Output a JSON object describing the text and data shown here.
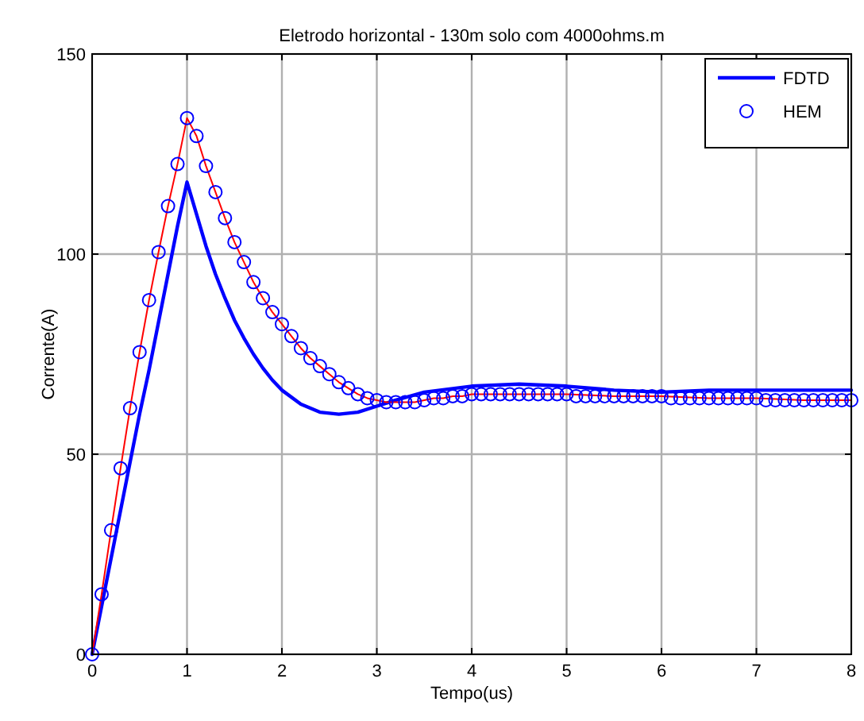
{
  "chart_data": {
    "type": "line",
    "title": "Eletrodo horizontal - 130m solo com 4000ohms.m",
    "xlabel": "Tempo(us)",
    "ylabel": "Corrente(A)",
    "xlim": [
      0,
      8
    ],
    "ylim": [
      0,
      150
    ],
    "xticks": [
      0,
      1,
      2,
      3,
      4,
      5,
      6,
      7,
      8
    ],
    "yticks": [
      0,
      50,
      100,
      150
    ],
    "grid": true,
    "legend": "top right",
    "series": [
      {
        "name": "FDTD",
        "color": "#0000ff",
        "x": [
          0,
          0.1,
          0.2,
          0.3,
          0.4,
          0.5,
          0.6,
          0.7,
          0.8,
          0.9,
          1.0,
          1.1,
          1.2,
          1.3,
          1.4,
          1.5,
          1.6,
          1.7,
          1.8,
          1.9,
          2.0,
          2.2,
          2.4,
          2.6,
          2.8,
          3.0,
          3.2,
          3.5,
          4.0,
          4.5,
          5.0,
          5.5,
          6.0,
          6.5,
          7.0,
          7.5,
          8.0
        ],
        "values": [
          0,
          12,
          24,
          36,
          48,
          60,
          71,
          83,
          95,
          107,
          118,
          110,
          102,
          95,
          89,
          83.5,
          79,
          75,
          71.5,
          68.5,
          66,
          62.5,
          60.5,
          60,
          60.5,
          62,
          63.5,
          65.5,
          67,
          67.5,
          67,
          66,
          65.5,
          66,
          66,
          66,
          66
        ]
      },
      {
        "color": "#ff0000",
        "x": [
          0,
          0.1,
          0.2,
          0.3,
          0.4,
          0.5,
          0.6,
          0.7,
          0.8,
          0.9,
          1.0,
          1.1,
          1.2,
          1.3,
          1.4,
          1.5,
          1.6,
          1.7,
          1.8,
          1.9,
          2.0,
          2.1,
          2.2,
          2.3,
          2.4,
          2.5,
          2.6,
          2.7,
          2.8,
          2.9,
          3.0,
          3.1,
          3.2,
          3.3,
          3.4,
          3.5,
          3.6,
          3.7,
          3.8,
          3.9,
          4.0,
          4.5,
          5.0,
          5.5,
          6.0,
          6.5,
          7.0,
          7.5,
          8.0
        ],
        "values": [
          0,
          15,
          31,
          46.5,
          61.5,
          75.5,
          88.5,
          100.5,
          112,
          122.5,
          134,
          129.5,
          122,
          115.5,
          109,
          103,
          98,
          93,
          89,
          85.5,
          82.5,
          79.5,
          76.5,
          74,
          72,
          70,
          68,
          66.5,
          65,
          64,
          63.5,
          63,
          63,
          63,
          63,
          63.5,
          64,
          64,
          64.5,
          64.5,
          65,
          65,
          65,
          64.5,
          64.5,
          64,
          64,
          63.5,
          63.5
        ]
      },
      {
        "name": "HEM",
        "type": "scatter",
        "marker": "circle",
        "color": "#0000ff",
        "x": [
          0,
          0.1,
          0.2,
          0.3,
          0.4,
          0.5,
          0.6,
          0.7,
          0.8,
          0.9,
          1.0,
          1.1,
          1.2,
          1.3,
          1.4,
          1.5,
          1.6,
          1.7,
          1.8,
          1.9,
          2.0,
          2.1,
          2.2,
          2.3,
          2.4,
          2.5,
          2.6,
          2.7,
          2.8,
          2.9,
          3.0,
          3.1,
          3.2,
          3.3,
          3.4,
          3.5,
          3.6,
          3.7,
          3.8,
          3.9,
          4.0,
          4.1,
          4.2,
          4.3,
          4.4,
          4.5,
          4.6,
          4.7,
          4.8,
          4.9,
          5.0,
          5.1,
          5.2,
          5.3,
          5.4,
          5.5,
          5.6,
          5.7,
          5.8,
          5.9,
          6.0,
          6.1,
          6.2,
          6.3,
          6.4,
          6.5,
          6.6,
          6.7,
          6.8,
          6.9,
          7.0,
          7.1,
          7.2,
          7.3,
          7.4,
          7.5,
          7.6,
          7.7,
          7.8,
          7.9,
          8.0
        ],
        "values": [
          0,
          15,
          31,
          46.5,
          61.5,
          75.5,
          88.5,
          100.5,
          112,
          122.5,
          134,
          129.5,
          122,
          115.5,
          109,
          103,
          98,
          93,
          89,
          85.5,
          82.5,
          79.5,
          76.5,
          74,
          72,
          70,
          68,
          66.5,
          65,
          64,
          63.5,
          63,
          63,
          63,
          63,
          63.5,
          64,
          64,
          64.5,
          64.5,
          65,
          65,
          65,
          65,
          65,
          65,
          65,
          65,
          65,
          65,
          65,
          64.5,
          64.5,
          64.5,
          64.5,
          64.5,
          64.5,
          64.5,
          64.5,
          64.5,
          64.5,
          64,
          64,
          64,
          64,
          64,
          64,
          64,
          64,
          64,
          64,
          63.5,
          63.5,
          63.5,
          63.5,
          63.5,
          63.5,
          63.5,
          63.5,
          63.5,
          63.5
        ]
      }
    ]
  }
}
